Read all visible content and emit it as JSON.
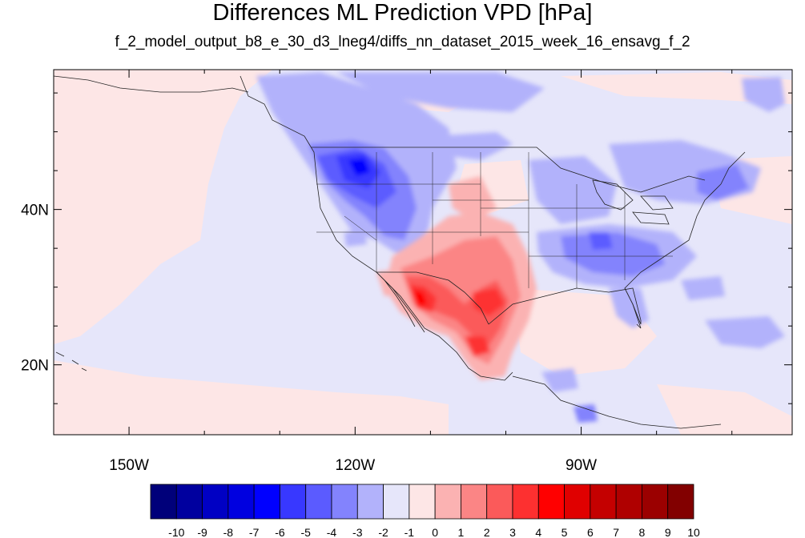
{
  "title": "Differences ML Prediction VPD [hPa]",
  "subtitle": "f_2_model_output_b8_e_30_d3_lneg4/diffs_nn_dataset_2015_week_16_ensavg_f_2",
  "map": {
    "lon_range": [
      -160,
      -62
    ],
    "lat_range": [
      11,
      58
    ],
    "background_color": "#e6e6fa",
    "lon_ticks": [
      {
        "value": -150,
        "label": "150W"
      },
      {
        "value": -120,
        "label": "120W"
      },
      {
        "value": -90,
        "label": "90W"
      }
    ],
    "lat_ticks": [
      {
        "value": 40,
        "label": "40N"
      },
      {
        "value": 20,
        "label": "20N"
      }
    ],
    "minor_lon_step": 10,
    "minor_lat_step": 5
  },
  "colorbar": {
    "colors": [
      "#00007a",
      "#00009f",
      "#0000c4",
      "#0000e0",
      "#0000ff",
      "#3838ff",
      "#5b5bff",
      "#8383fd",
      "#b2b2fb",
      "#e6e6fa",
      "#fde6e6",
      "#fbb2b2",
      "#fb8585",
      "#fb5a5a",
      "#fd3030",
      "#ff0000",
      "#e00000",
      "#c40000",
      "#af0000",
      "#9b0000",
      "#820000"
    ],
    "labels": [
      "-10",
      "-9",
      "-8",
      "-7",
      "-6",
      "-5",
      "-4",
      "-3",
      "-2",
      "-1",
      "0",
      "1",
      "2",
      "3",
      "4",
      "5",
      "6",
      "7",
      "8",
      "9",
      "10"
    ]
  }
}
